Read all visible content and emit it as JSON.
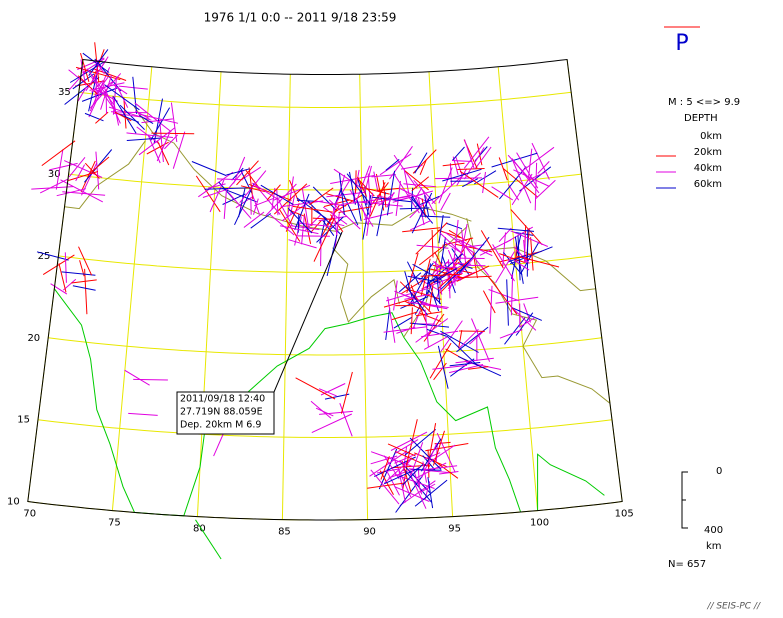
{
  "header": {
    "title": "1976 1/1 0:0 -- 2011 9/18 23:59"
  },
  "legend": {
    "symbol": "P",
    "magnitude": "M : 5 <=> 9.9",
    "depth_title": "DEPTH",
    "depths": [
      {
        "label": "0km",
        "color": "#ffffff"
      },
      {
        "label": "20km",
        "color": "#ff0000"
      },
      {
        "label": "40km",
        "color": "#e000e0"
      },
      {
        "label": "60km",
        "color": "#0000cc"
      }
    ]
  },
  "depth_scale": {
    "top": "0",
    "bottom": "400",
    "unit": "km"
  },
  "count": "N= 657",
  "footer": "// SEIS-PC //",
  "map": {
    "lat_labels": [
      35,
      30,
      25,
      20,
      15,
      10
    ],
    "lon_labels": [
      70,
      75,
      80,
      85,
      90,
      95,
      100,
      105
    ]
  },
  "annotation": {
    "lines": [
      "2011/09/18 12:40",
      "27.719N  88.059E",
      "Dep. 20km    M 6.9"
    ]
  }
}
